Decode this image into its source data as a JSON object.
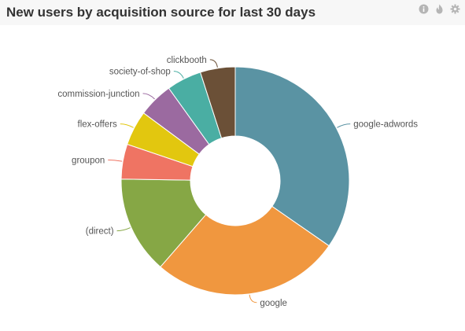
{
  "panel": {
    "title": "New users by acquisition source for last 30 days"
  },
  "toolbar": {
    "icons": [
      "info-icon",
      "flame-icon",
      "gear-icon"
    ]
  },
  "chart_data": {
    "type": "pie",
    "donut": true,
    "title": "New users by acquisition source for last 30 days",
    "legend": "none",
    "slices": [
      {
        "label": "google-adwords",
        "value": 35,
        "color": "#5a93a3"
      },
      {
        "label": "google",
        "value": 27,
        "color": "#f0973f"
      },
      {
        "label": "(direct)",
        "value": 14,
        "color": "#86a745"
      },
      {
        "label": "groupon",
        "value": 5,
        "color": "#ef7463"
      },
      {
        "label": "flex-offers",
        "value": 5,
        "color": "#e2c70f"
      },
      {
        "label": "commission-junction",
        "value": 5,
        "color": "#9b6aa0"
      },
      {
        "label": "society-of-shop",
        "value": 5,
        "color": "#4aaea3"
      },
      {
        "label": "clickbooth",
        "value": 5,
        "color": "#6b5037"
      }
    ]
  }
}
